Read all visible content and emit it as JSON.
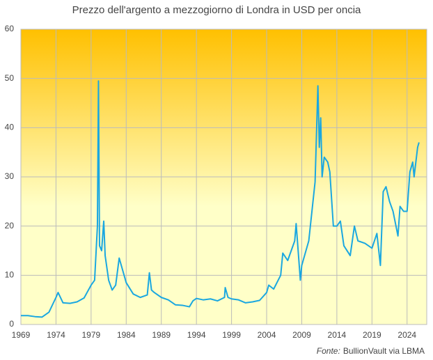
{
  "chart_data": {
    "type": "line",
    "title": "Prezzo dell'argento a mezzogiorno di Londra in USD per oncia",
    "source_label": "Fonte:",
    "source_text": "BullionVault via LBMA",
    "xlim": [
      1969,
      2026.8
    ],
    "xticks": [
      1969,
      1974,
      1979,
      1984,
      1989,
      1994,
      1999,
      2004,
      2009,
      2014,
      2019,
      2024
    ],
    "ylim": [
      0,
      60
    ],
    "yticks": [
      0,
      10,
      20,
      30,
      40,
      50,
      60
    ],
    "grid": true,
    "background_top": "#ffc000",
    "background_bottom": "#ffffc8",
    "x": [
      1969,
      1970,
      1971,
      1972,
      1973,
      1974,
      1974.3,
      1975,
      1976,
      1977,
      1978,
      1979,
      1979.5,
      1979.9,
      1980.05,
      1980.2,
      1980.5,
      1980.8,
      1981,
      1981.5,
      1982,
      1982.5,
      1983,
      1983.5,
      1984,
      1985,
      1986,
      1987,
      1987.3,
      1987.6,
      1988,
      1989,
      1990,
      1991,
      1992,
      1993,
      1993.5,
      1994,
      1995,
      1996,
      1997,
      1998,
      1998.1,
      1998.5,
      1999,
      2000,
      2001,
      2002,
      2003,
      2004,
      2004.3,
      2005,
      2006,
      2006.3,
      2007,
      2008,
      2008.2,
      2008.8,
      2009,
      2010,
      2010.9,
      2011.3,
      2011.5,
      2011.7,
      2011.9,
      2012.2,
      2012.7,
      2013,
      2013.5,
      2014,
      2014.5,
      2015,
      2015.9,
      2016.5,
      2017,
      2018,
      2019,
      2019.7,
      2020.2,
      2020.6,
      2021,
      2021.5,
      2022,
      2022.7,
      2023,
      2023.5,
      2024,
      2024.4,
      2024.8,
      2025,
      2025.5,
      2025.7
    ],
    "series": [
      {
        "name": "Argento",
        "color": "#1aa7e0",
        "values": [
          1.8,
          1.8,
          1.6,
          1.5,
          2.5,
          5.5,
          6.5,
          4.4,
          4.3,
          4.6,
          5.4,
          8,
          9,
          20,
          49.5,
          16,
          15,
          21,
          14,
          9,
          7,
          8,
          13.5,
          11,
          8.5,
          6.2,
          5.5,
          6,
          10.5,
          7,
          6.5,
          5.5,
          5,
          4,
          3.9,
          3.6,
          4.8,
          5.3,
          5,
          5.2,
          4.8,
          5.5,
          7.5,
          5.5,
          5.2,
          5,
          4.4,
          4.6,
          4.9,
          6.5,
          8,
          7.2,
          10,
          14.5,
          13,
          17,
          20.5,
          9,
          12,
          17,
          29,
          48.5,
          36,
          42,
          30,
          34,
          33,
          31,
          20,
          20,
          21,
          16,
          14,
          20,
          17,
          16.5,
          15.5,
          18.5,
          12,
          27,
          28,
          25,
          23,
          18,
          24,
          23,
          23,
          31,
          33,
          30,
          36,
          37
        ]
      }
    ]
  }
}
